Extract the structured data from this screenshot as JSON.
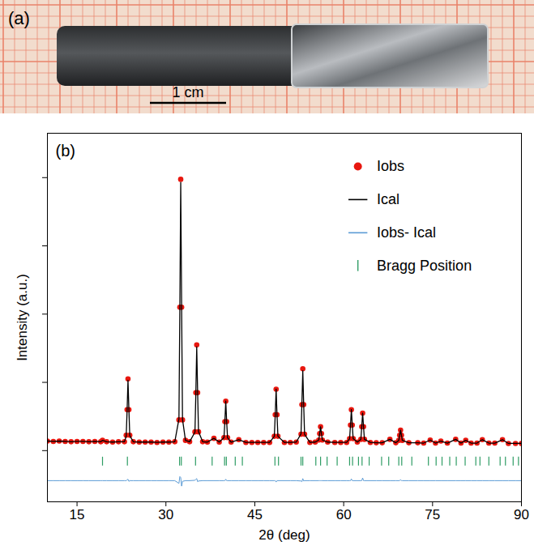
{
  "photo": {
    "label": "(a)",
    "scale_bar": "1 cm"
  },
  "chart_data": {
    "type": "scatter",
    "panel_label": "(b)",
    "x_label": "2θ (deg)",
    "y_label": "Intensity (a.u.)",
    "xlim": [
      10,
      90
    ],
    "xticks": [
      15,
      30,
      45,
      60,
      75,
      90
    ],
    "ylim": [
      -15,
      93
    ],
    "yticks": [
      0,
      20,
      40,
      60,
      80
    ],
    "tick_labels": "x",
    "grid": false,
    "legend": "upper right",
    "x": [
      10,
      11,
      12,
      13,
      14,
      15,
      16,
      17,
      18,
      19,
      19.3,
      20,
      21,
      22,
      23,
      23.3,
      23.45,
      23.6,
      23.75,
      23.9,
      24.5,
      25.5,
      26.5,
      27.5,
      28.5,
      29.5,
      30.5,
      31.5,
      32.2,
      32.35,
      32.5,
      32.65,
      32.8,
      33.3,
      34,
      34.9,
      35.05,
      35.2,
      35.35,
      35.5,
      36.2,
      37,
      38.1,
      39,
      39.8,
      39.95,
      40.1,
      40.25,
      40.4,
      41,
      42.3,
      43.5,
      44.5,
      45.5,
      46.5,
      47.5,
      48.3,
      48.45,
      48.6,
      48.75,
      48.9,
      50,
      51,
      52,
      52.8,
      52.95,
      53.1,
      53.25,
      53.4,
      54.3,
      55.2,
      55.8,
      55.95,
      56.1,
      56.25,
      56.4,
      57.3,
      58.5,
      59.5,
      60.5,
      61,
      61.15,
      61.3,
      61.45,
      61.6,
      62.3,
      62.9,
      63.05,
      63.2,
      63.35,
      63.5,
      64.5,
      65.5,
      66.5,
      67.8,
      68.8,
      69.3,
      69.45,
      69.6,
      69.75,
      69.9,
      71,
      72.5,
      73.5,
      74.6,
      75.5,
      76.4,
      77.5,
      78.9,
      79.8,
      80.6,
      81.5,
      82.5,
      83.4,
      84.5,
      85.5,
      86.8,
      87.8,
      89,
      90
    ],
    "series": [
      {
        "name": "Iobs",
        "type": "scatter",
        "marker": "circle",
        "color": "#e8170f",
        "values": [
          2.8,
          2.7,
          2.8,
          2.7,
          2.6,
          2.7,
          2.7,
          2.6,
          2.7,
          2.6,
          3.0,
          2.6,
          2.5,
          2.6,
          2.6,
          4.5,
          12,
          21,
          12,
          4.5,
          2.6,
          2.5,
          2.5,
          2.5,
          2.4,
          2.5,
          2.5,
          2.6,
          9,
          42,
          79.5,
          42,
          9,
          3.0,
          2.6,
          5.5,
          17,
          31,
          17,
          5.5,
          2.6,
          2.5,
          3.6,
          2.5,
          3.8,
          8.5,
          14.5,
          8.5,
          3.8,
          2.5,
          3.2,
          2.4,
          2.4,
          2.4,
          2.4,
          2.4,
          4.2,
          10.5,
          18,
          10.5,
          4.2,
          2.4,
          2.4,
          2.5,
          4.8,
          13.5,
          24,
          13.5,
          4.8,
          2.4,
          2.5,
          3.1,
          5,
          7,
          5,
          3.1,
          2.5,
          2.4,
          2.4,
          2.4,
          3.5,
          7.5,
          12,
          7.5,
          3.5,
          2.5,
          3.3,
          7,
          11,
          7,
          3.3,
          2.4,
          2.3,
          2.3,
          3.3,
          2.3,
          3,
          4.5,
          6,
          4.5,
          3,
          2.3,
          2.3,
          2.2,
          3.1,
          2.2,
          2.8,
          2.2,
          3.3,
          2.2,
          3.0,
          2.2,
          2.2,
          3.2,
          2.2,
          2.2,
          3.2,
          2.1,
          2.1,
          2.1
        ]
      },
      {
        "name": "Ical",
        "type": "line",
        "color": "#000000",
        "values": [
          2.8,
          2.7,
          2.8,
          2.7,
          2.6,
          2.7,
          2.7,
          2.6,
          2.7,
          2.6,
          3.0,
          2.6,
          2.5,
          2.6,
          2.6,
          4.3,
          11.8,
          20.6,
          12.2,
          4.4,
          2.6,
          2.5,
          2.5,
          2.5,
          2.4,
          2.5,
          2.5,
          2.6,
          9.3,
          41.2,
          78.6,
          42.5,
          9.2,
          3.0,
          2.6,
          5.4,
          16.6,
          30.4,
          17.3,
          5.6,
          2.6,
          2.5,
          3.6,
          2.5,
          3.8,
          8.5,
          14.5,
          8.5,
          3.8,
          2.5,
          3.2,
          2.4,
          2.4,
          2.4,
          2.4,
          2.4,
          4.2,
          10.5,
          18,
          10.5,
          4.2,
          2.4,
          2.4,
          2.5,
          4.9,
          13.8,
          23.4,
          13.6,
          4.8,
          2.4,
          2.5,
          3.1,
          5,
          7,
          5,
          3.1,
          2.5,
          2.4,
          2.4,
          2.4,
          3.5,
          7.5,
          12,
          7.5,
          3.5,
          2.5,
          3.3,
          7,
          11,
          7,
          3.3,
          2.4,
          2.3,
          2.3,
          3.3,
          2.3,
          3,
          4.5,
          6,
          4.5,
          3,
          2.3,
          2.3,
          2.2,
          3.1,
          2.2,
          2.8,
          2.2,
          3.3,
          2.2,
          3.0,
          2.2,
          2.2,
          3.2,
          2.2,
          2.2,
          3.2,
          2.1,
          2.1,
          2.1
        ]
      },
      {
        "name": "Iobs- Ical",
        "type": "line",
        "color": "#5b9bd5",
        "values": [
          -8.8,
          -8.8,
          -8.8,
          -8.8,
          -8.8,
          -8.8,
          -8.8,
          -8.8,
          -8.8,
          -8.8,
          -8.8,
          -8.8,
          -8.8,
          -8.8,
          -8.8,
          -8.8,
          -8.6,
          -8.4,
          -9.0,
          -8.8,
          -8.8,
          -8.8,
          -8.8,
          -8.8,
          -8.8,
          -8.8,
          -8.8,
          -8.8,
          -9.6,
          -7.6,
          -7.9,
          -10.4,
          -9.0,
          -8.8,
          -8.8,
          -8.7,
          -8.4,
          -8.2,
          -9.1,
          -8.9,
          -8.8,
          -8.8,
          -8.8,
          -8.8,
          -8.8,
          -8.8,
          -8.4,
          -8.8,
          -8.8,
          -8.8,
          -8.8,
          -8.8,
          -8.8,
          -8.8,
          -8.8,
          -8.8,
          -8.8,
          -8.8,
          -9.2,
          -8.8,
          -8.8,
          -8.8,
          -8.8,
          -8.8,
          -8.9,
          -9.1,
          -8.2,
          -8.9,
          -8.8,
          -8.8,
          -8.8,
          -8.8,
          -8.8,
          -8.8,
          -8.8,
          -8.8,
          -8.8,
          -8.8,
          -8.8,
          -8.8,
          -8.8,
          -8.8,
          -8.3,
          -8.8,
          -8.8,
          -8.8,
          -8.8,
          -8.8,
          -8.0,
          -8.8,
          -8.8,
          -8.8,
          -8.8,
          -8.8,
          -8.8,
          -8.8,
          -8.8,
          -8.8,
          -8.5,
          -8.8,
          -8.8,
          -8.8,
          -8.8,
          -8.8,
          -8.8,
          -8.8,
          -8.8,
          -8.8,
          -8.8,
          -8.8,
          -8.8,
          -8.8,
          -8.8,
          -8.8,
          -8.8,
          -8.8,
          -8.8,
          -8.8,
          -8.8,
          -8.8
        ]
      },
      {
        "name": "Bragg Position",
        "type": "tick",
        "marker": "|",
        "color": "#2e9c64",
        "x": [
          19.3,
          23.5,
          32.3,
          32.6,
          35.0,
          37.8,
          39.9,
          40.2,
          41.7,
          42.9,
          48.4,
          49.0,
          52.8,
          53.1,
          55.3,
          56.1,
          57.2,
          58.9,
          61.0,
          61.5,
          62.5,
          63.1,
          64.3,
          66.4,
          67.6,
          69.3,
          69.8,
          71.5,
          74.3,
          75.6,
          76.6,
          77.9,
          79.0,
          80.5,
          82.3,
          83.0,
          84.5,
          86.4,
          87.3,
          88.6,
          89.5
        ],
        "values": [
          -3.2,
          -3.2,
          -3.2,
          -3.2,
          -3.2,
          -3.2,
          -3.2,
          -3.2,
          -3.2,
          -3.2,
          -3.2,
          -3.2,
          -3.2,
          -3.2,
          -3.2,
          -3.2,
          -3.2,
          -3.2,
          -3.2,
          -3.2,
          -3.2,
          -3.2,
          -3.2,
          -3.2,
          -3.2,
          -3.2,
          -3.2,
          -3.2,
          -3.2,
          -3.2,
          -3.2,
          -3.2,
          -3.2,
          -3.2,
          -3.2,
          -3.2,
          -3.2,
          -3.2,
          -3.2,
          -3.2,
          -3.2
        ]
      }
    ]
  }
}
